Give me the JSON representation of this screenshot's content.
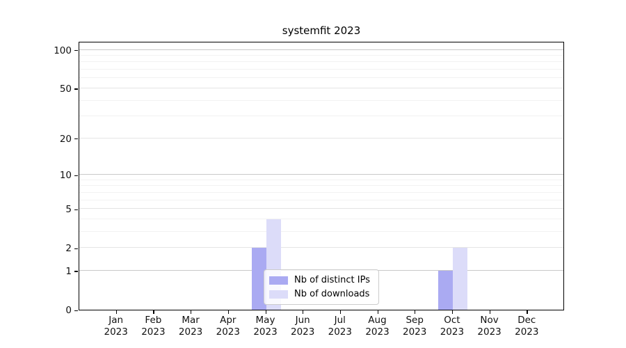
{
  "title": "systemfit 2023",
  "colors": {
    "distinct_ips_bar": "#aaaaf2",
    "downloads_bar": "#dcdcf9",
    "grid_decade": "#c9c9c9",
    "grid_major": "#e4e4e4",
    "grid_minor": "#f2f2f2",
    "axis": "#000000"
  },
  "legend": {
    "items": [
      {
        "label": "Nb of distinct IPs",
        "color": "#aaaaf2"
      },
      {
        "label": "Nb of downloads",
        "color": "#dcdcf9"
      }
    ]
  },
  "chart_data": {
    "type": "bar",
    "title": "systemfit 2023",
    "categories": [
      "Jan 2023",
      "Feb 2023",
      "Mar 2023",
      "Apr 2023",
      "May 2023",
      "Jun 2023",
      "Jul 2023",
      "Aug 2023",
      "Sep 2023",
      "Oct 2023",
      "Nov 2023",
      "Dec 2023"
    ],
    "series": [
      {
        "name": "Nb of distinct IPs",
        "color": "#aaaaf2",
        "values": [
          0,
          0,
          0,
          0,
          2,
          0,
          0,
          0,
          0,
          1,
          0,
          0
        ]
      },
      {
        "name": "Nb of downloads",
        "color": "#dcdcf9",
        "values": [
          0,
          0,
          0,
          0,
          4,
          0,
          0,
          0,
          0,
          2,
          0,
          0
        ]
      }
    ],
    "xlabel": "",
    "ylabel": "",
    "y_scale": "log1p",
    "ylim": [
      0,
      117
    ],
    "y_ticks": [
      0,
      1,
      2,
      5,
      10,
      20,
      50,
      100
    ],
    "y_decade_lines": [
      1,
      10,
      100
    ],
    "y_minor_gridlines": [
      3,
      4,
      6,
      7,
      8,
      9,
      30,
      40,
      60,
      70,
      80,
      90
    ],
    "grid": true,
    "legend_position": "lower center"
  }
}
